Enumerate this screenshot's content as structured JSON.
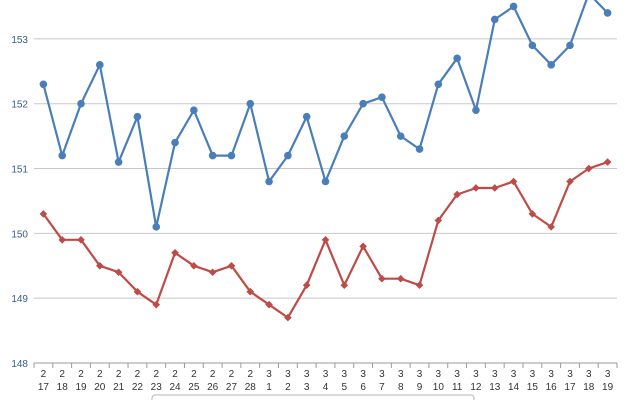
{
  "chart_data": {
    "type": "line",
    "title": "",
    "xlabel": "",
    "ylabel": "",
    "ylim": [
      148,
      153.6
    ],
    "yticks": [
      "148",
      "149",
      "150",
      "151",
      "152",
      "153"
    ],
    "grid": true,
    "categories": [
      {
        "month": "2",
        "day": "17"
      },
      {
        "month": "2",
        "day": "18"
      },
      {
        "month": "2",
        "day": "19"
      },
      {
        "month": "2",
        "day": "20"
      },
      {
        "month": "2",
        "day": "21"
      },
      {
        "month": "2",
        "day": "22"
      },
      {
        "month": "2",
        "day": "23"
      },
      {
        "month": "2",
        "day": "24"
      },
      {
        "month": "2",
        "day": "25"
      },
      {
        "month": "2",
        "day": "26"
      },
      {
        "month": "2",
        "day": "27"
      },
      {
        "month": "2",
        "day": "28"
      },
      {
        "month": "3",
        "day": "1"
      },
      {
        "month": "3",
        "day": "2"
      },
      {
        "month": "3",
        "day": "3"
      },
      {
        "month": "3",
        "day": "4"
      },
      {
        "month": "3",
        "day": "5"
      },
      {
        "month": "3",
        "day": "6"
      },
      {
        "month": "3",
        "day": "7"
      },
      {
        "month": "3",
        "day": "8"
      },
      {
        "month": "3",
        "day": "9"
      },
      {
        "month": "3",
        "day": "10"
      },
      {
        "month": "3",
        "day": "11"
      },
      {
        "month": "3",
        "day": "12"
      },
      {
        "month": "3",
        "day": "13"
      },
      {
        "month": "3",
        "day": "14"
      },
      {
        "month": "3",
        "day": "15"
      },
      {
        "month": "3",
        "day": "16"
      },
      {
        "month": "3",
        "day": "17"
      },
      {
        "month": "3",
        "day": "18"
      },
      {
        "month": "3",
        "day": "19"
      }
    ],
    "series": [
      {
        "color": "#4a7ebb",
        "marker": "circle",
        "values": [
          152.3,
          151.2,
          152.0,
          152.6,
          151.1,
          151.8,
          150.1,
          151.4,
          151.9,
          151.2,
          151.2,
          152.0,
          150.8,
          151.2,
          151.8,
          150.8,
          151.5,
          152.0,
          152.1,
          151.5,
          151.3,
          152.3,
          152.7,
          151.9,
          153.3,
          153.5,
          152.9,
          152.6,
          152.9,
          153.7,
          153.4
        ]
      },
      {
        "color": "#be4b48",
        "marker": "diamond",
        "values": [
          150.3,
          149.9,
          149.9,
          149.5,
          149.4,
          149.1,
          148.9,
          149.7,
          149.5,
          149.4,
          149.5,
          149.1,
          148.9,
          148.7,
          149.2,
          149.9,
          149.2,
          149.8,
          149.3,
          149.3,
          149.2,
          150.2,
          150.6,
          150.7,
          150.7,
          150.8,
          150.3,
          150.1,
          150.8,
          151.0,
          151.1
        ]
      }
    ],
    "legend": {
      "position": "bottom-center"
    }
  }
}
